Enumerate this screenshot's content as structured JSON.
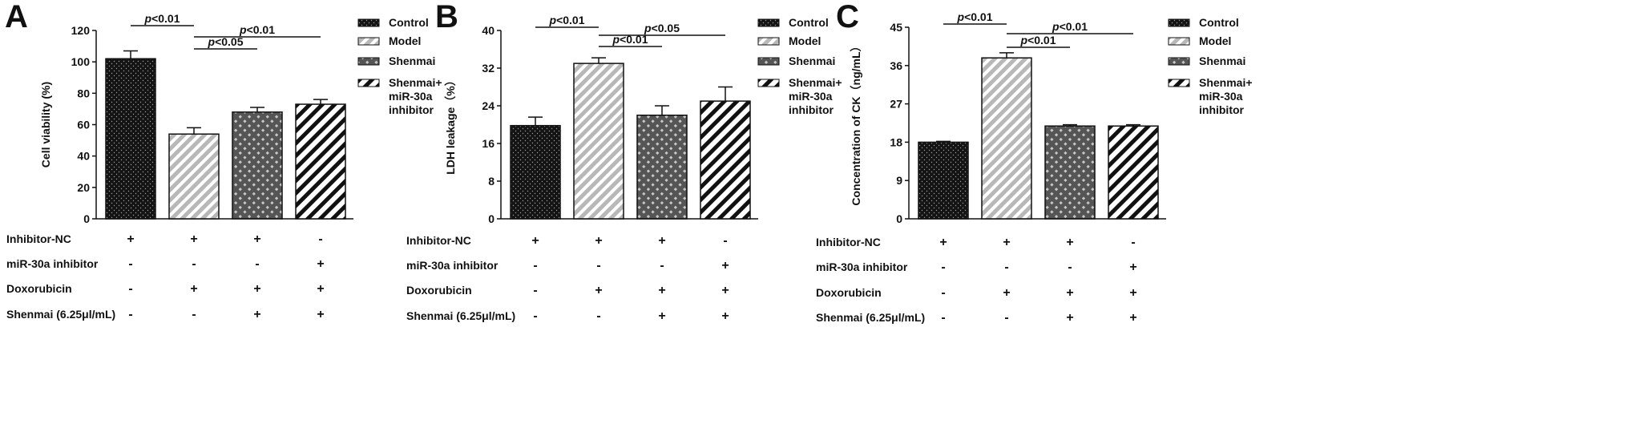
{
  "legend": [
    "Control",
    "Model",
    "Shenmai",
    "Shenmai+\nmiR-30a\ninhibitor"
  ],
  "condition_rows": [
    {
      "label": "Inhibitor-NC",
      "values": [
        "+",
        "+",
        "+",
        "-"
      ]
    },
    {
      "label": "miR-30a inhibitor",
      "values": [
        "-",
        "-",
        "-",
        "+"
      ]
    },
    {
      "label": "Doxorubicin",
      "values": [
        "-",
        "+",
        "+",
        "+"
      ]
    },
    {
      "label": "Shenmai (6.25μl/mL)",
      "values": [
        "-",
        "-",
        "+",
        "+"
      ]
    }
  ],
  "chart_data": [
    {
      "panel": "A",
      "type": "bar",
      "categories": [
        "Control",
        "Model",
        "Shenmai",
        "Shenmai+miR-30a inhibitor"
      ],
      "values": [
        102,
        54,
        68,
        73
      ],
      "errors": [
        5,
        4,
        3,
        3
      ],
      "ylabel": "Cell viability (%)",
      "ylim": [
        0,
        120
      ],
      "yticks": [
        0,
        20,
        40,
        60,
        80,
        100,
        120
      ],
      "significance": [
        {
          "from": 0,
          "to": 1,
          "label": "p<0.01"
        },
        {
          "from": 1,
          "to": 2,
          "label": "p<0.05"
        },
        {
          "from": 1,
          "to": 3,
          "label": "p<0.01"
        }
      ]
    },
    {
      "panel": "B",
      "type": "bar",
      "categories": [
        "Control",
        "Model",
        "Shenmai",
        "Shenmai+miR-30a inhibitor"
      ],
      "values": [
        19.8,
        33,
        22,
        25
      ],
      "errors": [
        1.8,
        1.2,
        2,
        3
      ],
      "ylabel": "LDH leakage（%）",
      "ylim": [
        0,
        40
      ],
      "yticks": [
        0,
        8,
        16,
        24,
        32,
        40
      ],
      "significance": [
        {
          "from": 0,
          "to": 1,
          "label": "p<0.01"
        },
        {
          "from": 1,
          "to": 2,
          "label": "p<0.01"
        },
        {
          "from": 1,
          "to": 3,
          "label": "p<0.05"
        }
      ]
    },
    {
      "panel": "C",
      "type": "bar",
      "categories": [
        "Control",
        "Model",
        "Shenmai",
        "Shenmai+miR-30a inhibitor"
      ],
      "values": [
        18,
        37.8,
        21.8,
        21.8
      ],
      "errors": [
        0.2,
        1.2,
        0.3,
        0.3
      ],
      "ylabel": "Concentration of CK（ng/mL）",
      "ylim": [
        0,
        45
      ],
      "yticks": [
        0,
        9,
        18,
        27,
        36,
        45
      ],
      "significance": [
        {
          "from": 0,
          "to": 1,
          "label": "p<0.01"
        },
        {
          "from": 1,
          "to": 2,
          "label": "p<0.01"
        },
        {
          "from": 1,
          "to": 3,
          "label": "p<0.01"
        }
      ]
    }
  ]
}
